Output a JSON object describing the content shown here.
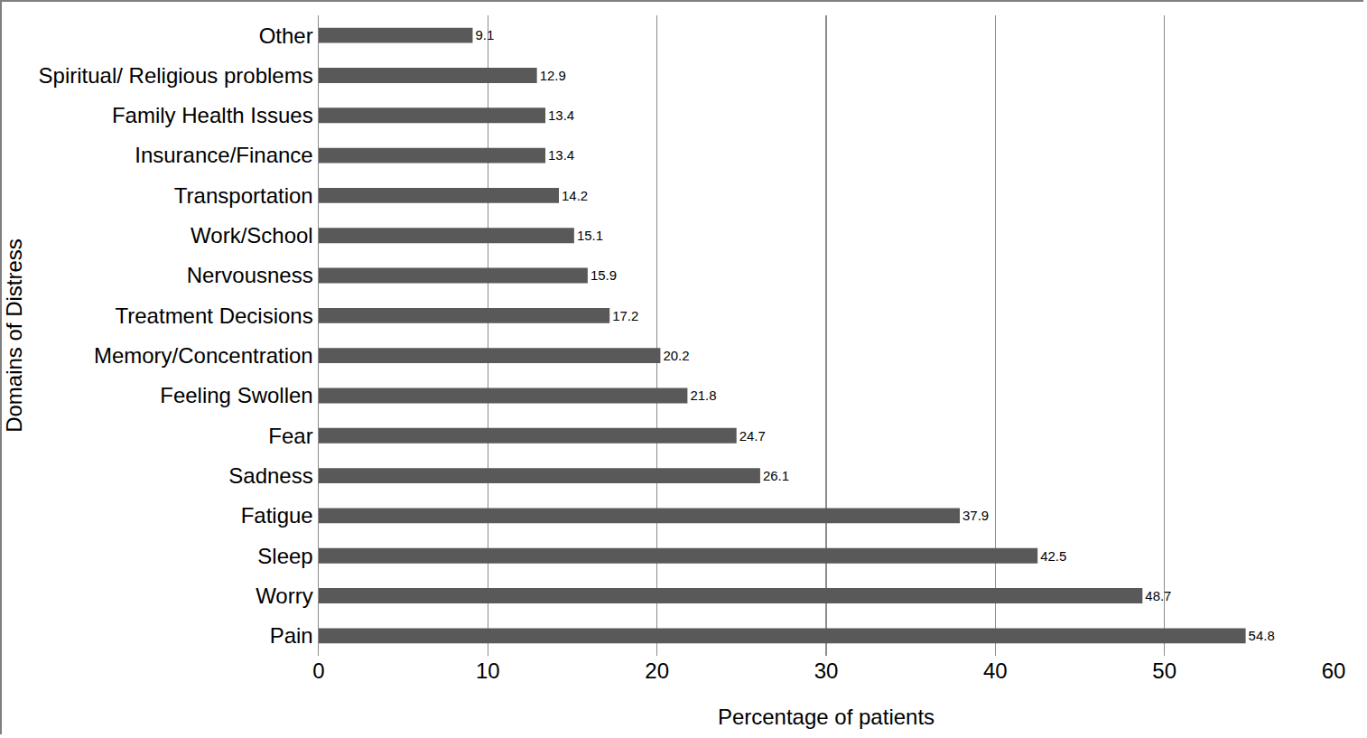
{
  "chart_data": {
    "type": "bar",
    "orientation": "horizontal",
    "x_label": "Percentage of patients",
    "y_label": "Domains of Distress",
    "categories": [
      "Pain",
      "Worry",
      "Sleep",
      "Fatigue",
      "Sadness",
      "Fear",
      "Feeling Swollen",
      "Memory/Concentration",
      "Treatment Decisions",
      "Nervousness",
      "Work/School",
      "Transportation",
      "Insurance/Finance",
      "Family Health Issues",
      "Spiritual/ Religious problems",
      "Other"
    ],
    "values": [
      54.8,
      48.7,
      42.5,
      37.9,
      26.1,
      24.7,
      21.8,
      20.2,
      17.2,
      15.9,
      15.1,
      14.2,
      13.4,
      13.4,
      12.9,
      9.1
    ],
    "color": "#595959",
    "xlim": [
      0,
      60
    ],
    "xticks": [
      0,
      10,
      20,
      30,
      40,
      50,
      60
    ],
    "grid": true,
    "data_labels": true
  }
}
